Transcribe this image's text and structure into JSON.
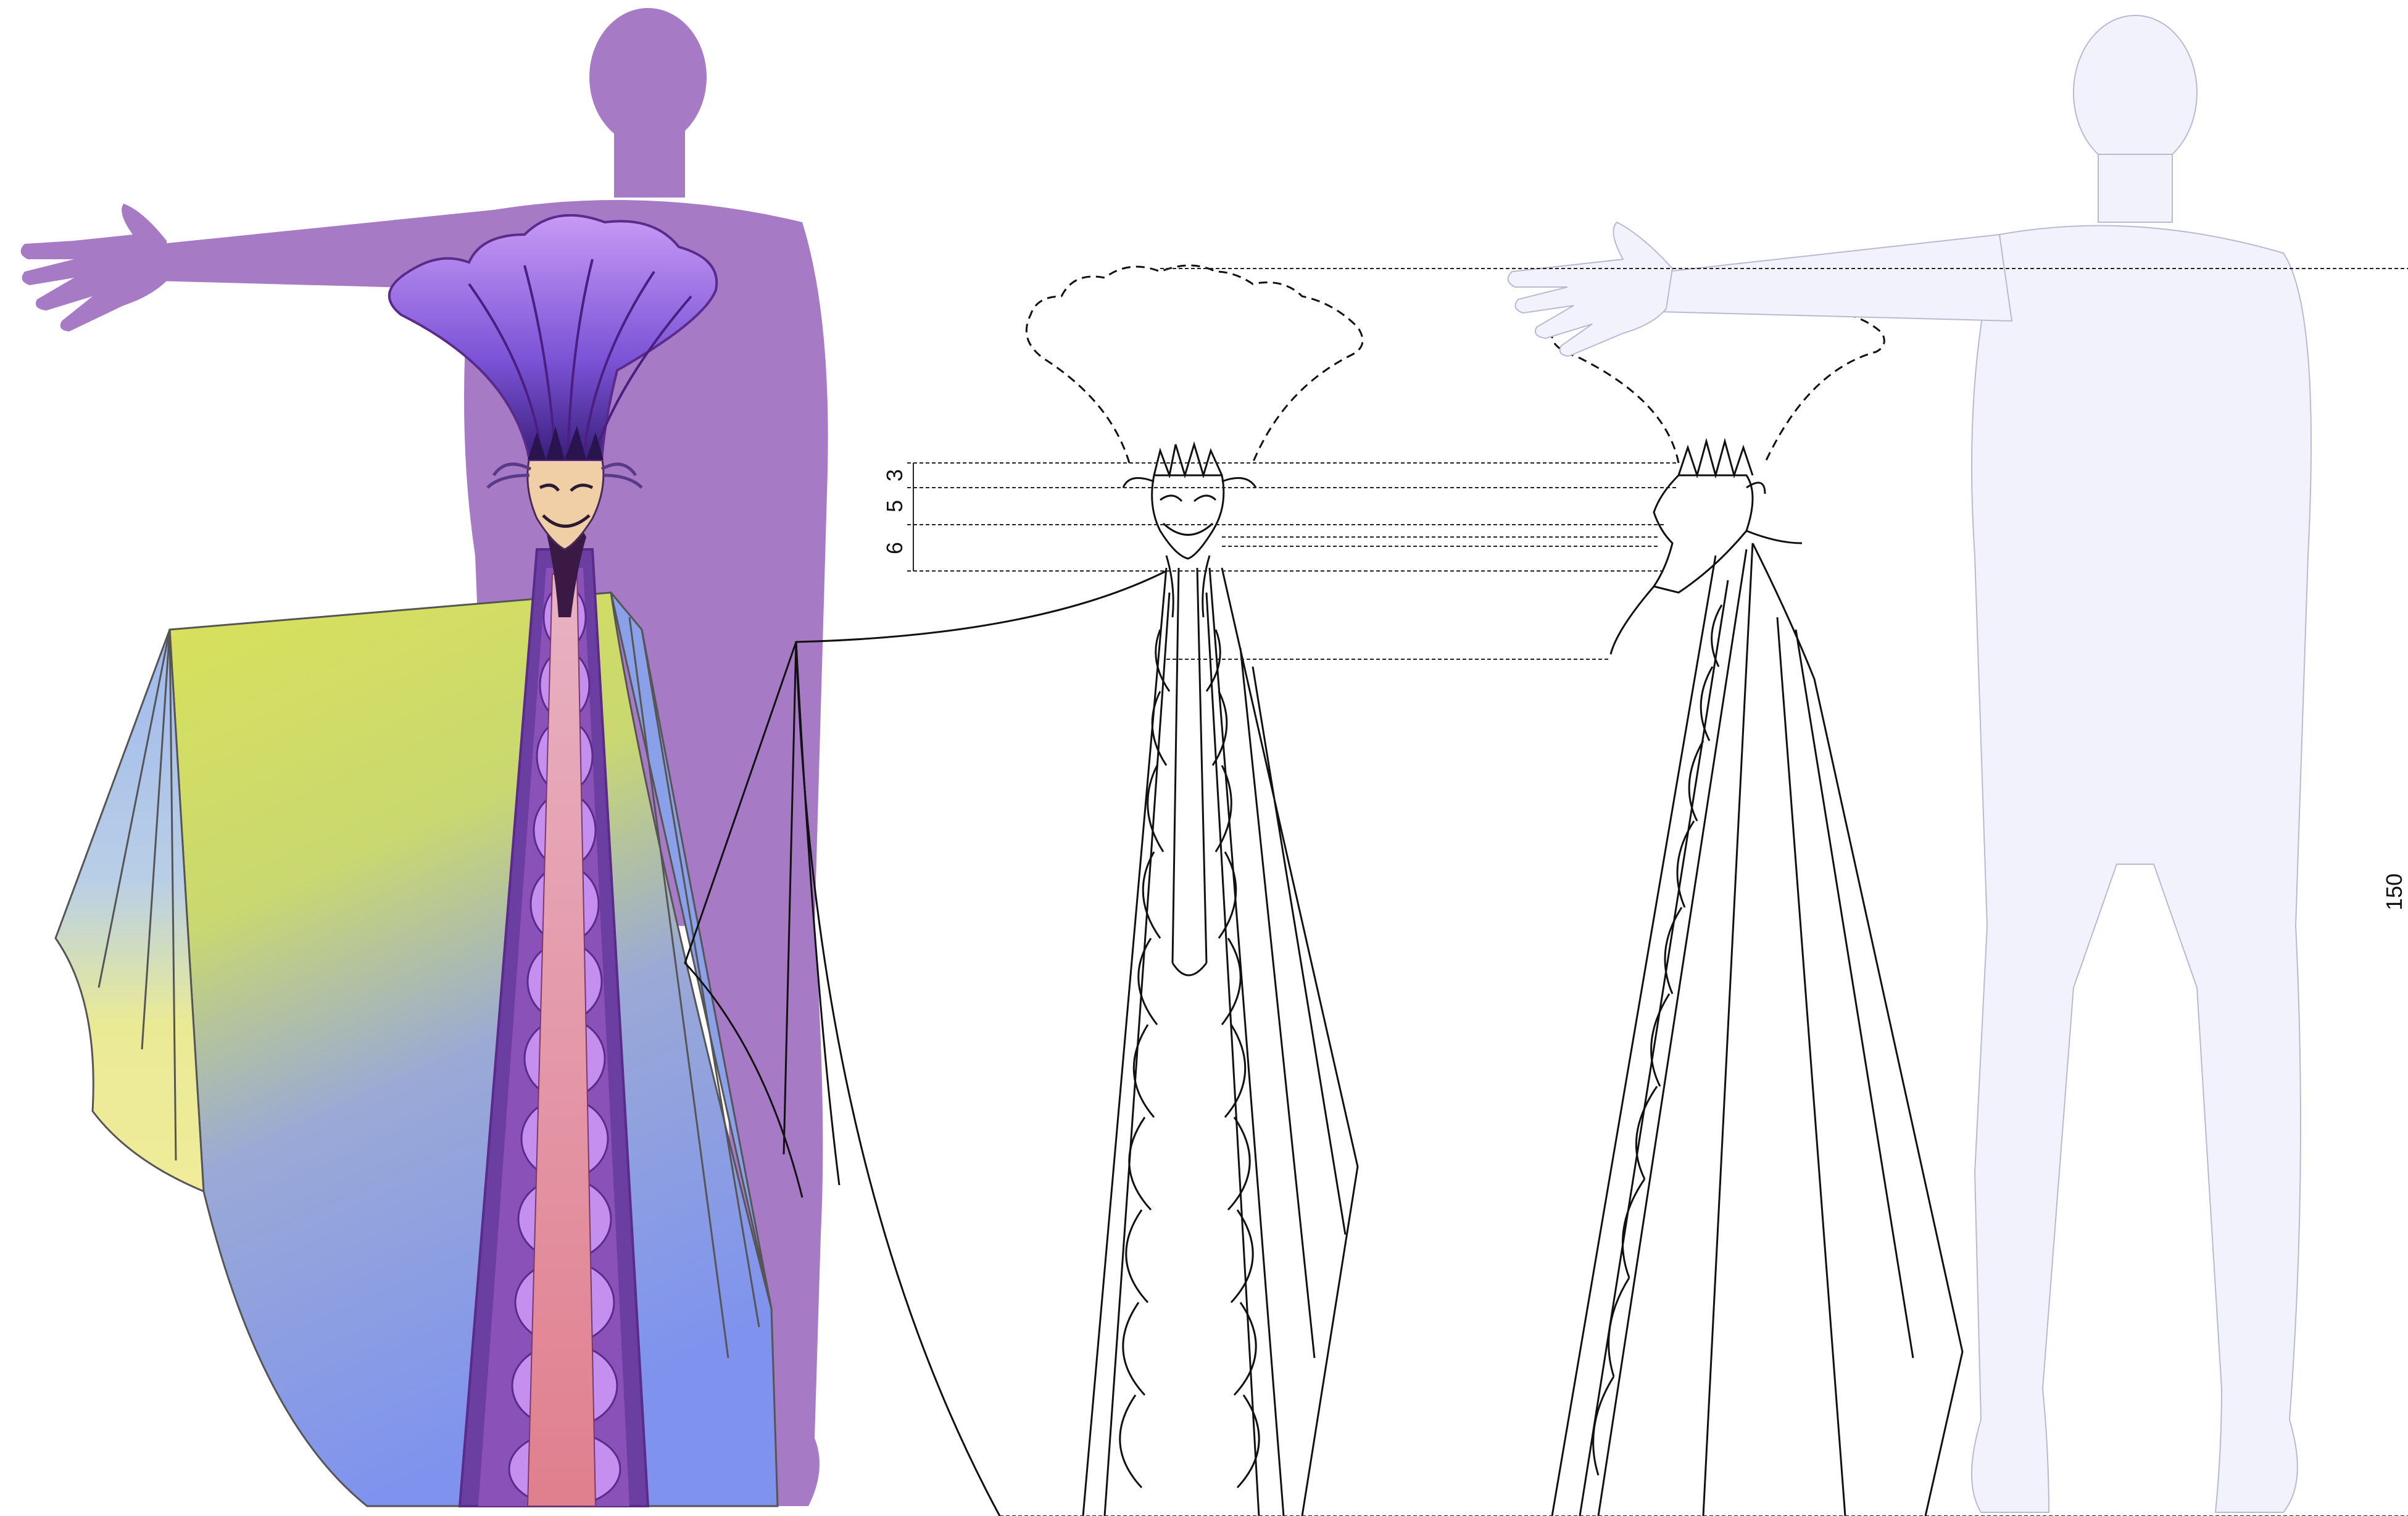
{
  "colors": {
    "silhouette_purple": "#a77ac6",
    "silhouette_lavender": "#f2f2fc",
    "robe_stripe_dark": "#6b3fa2",
    "robe_stripe_light": "#c58ff0",
    "robe_center": "#e07f8e",
    "cape_yellow": "#d9e25a",
    "cape_blue": "#7f93ee",
    "headdress_purple": "#9b6ee6"
  },
  "dimensions": {
    "segment_1": "3",
    "segment_2": "5",
    "segment_3": "6",
    "total_height": "150"
  }
}
